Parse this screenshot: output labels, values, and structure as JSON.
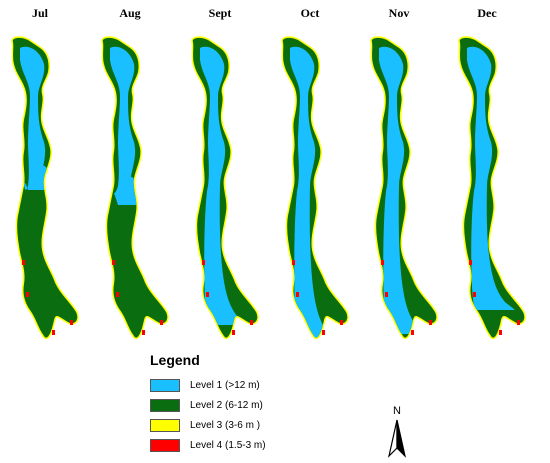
{
  "months": [
    "Jul",
    "Aug",
    "Sept",
    "Oct",
    "Nov",
    "Dec"
  ],
  "month_depth_share": [
    {
      "level1": 0.4,
      "level2": 0.55
    },
    {
      "level1": 0.45,
      "level2": 0.5
    },
    {
      "level1": 0.85,
      "level2": 0.12
    },
    {
      "level1": 0.9,
      "level2": 0.08
    },
    {
      "level1": 0.88,
      "level2": 0.09
    },
    {
      "level1": 0.8,
      "level2": 0.16
    }
  ],
  "legend": {
    "title": "Legend",
    "items": [
      {
        "label": "Level 1 (>12 m)",
        "color": "#19bfff"
      },
      {
        "label": "Level 2 (6-12 m)",
        "color": "#0a6e10"
      },
      {
        "label": "Level 3 (3-6 m )",
        "color": "#ffff00"
      },
      {
        "label": "Level 4 (1.5-3 m)",
        "color": "#ff0000"
      }
    ]
  },
  "north_label": "N",
  "colors": {
    "level1": "#19bfff",
    "level2": "#0a6e10",
    "level3": "#ffff00",
    "level4": "#ff0000"
  }
}
